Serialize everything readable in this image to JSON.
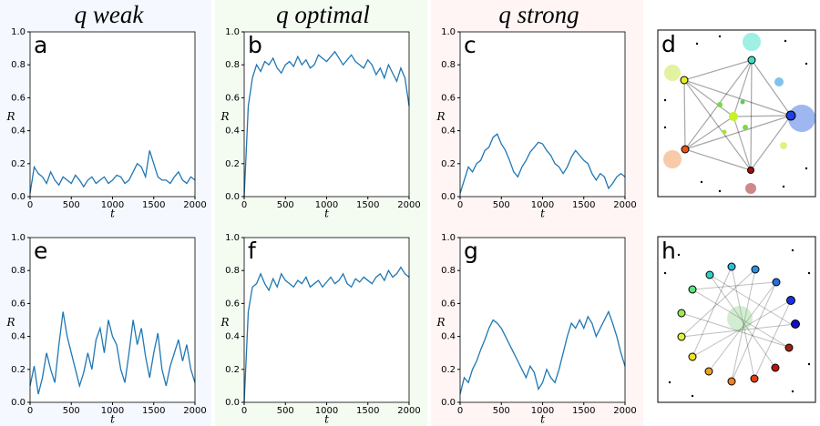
{
  "chart_data": [
    {
      "type": "line",
      "title": "q weak",
      "panel_label": "a",
      "xlabel": "t",
      "ylabel": "R",
      "color": "#1f77b4",
      "xlim": [
        0,
        2000
      ],
      "ylim": [
        0,
        1
      ],
      "xticks": [
        0,
        500,
        1000,
        1500,
        2000
      ],
      "yticks": [
        {
          "value": 0,
          "label": "0.0"
        },
        {
          "value": 0.2,
          "label": "0.2"
        },
        {
          "value": 0.4,
          "label": "0.4"
        },
        {
          "value": 0.6,
          "label": "0.6"
        },
        {
          "value": 0.8,
          "label": "0.8"
        },
        {
          "value": 1,
          "label": "1.0"
        }
      ],
      "x": [
        0,
        50,
        100,
        150,
        200,
        250,
        300,
        350,
        400,
        450,
        500,
        550,
        600,
        650,
        700,
        750,
        800,
        850,
        900,
        950,
        1000,
        1050,
        1100,
        1150,
        1200,
        1250,
        1300,
        1350,
        1400,
        1450,
        1500,
        1550,
        1600,
        1650,
        1700,
        1750,
        1800,
        1850,
        1900,
        1950,
        2000
      ],
      "values": [
        0.02,
        0.18,
        0.14,
        0.12,
        0.08,
        0.15,
        0.1,
        0.07,
        0.12,
        0.1,
        0.08,
        0.13,
        0.1,
        0.06,
        0.1,
        0.12,
        0.08,
        0.1,
        0.12,
        0.08,
        0.1,
        0.13,
        0.12,
        0.08,
        0.1,
        0.15,
        0.2,
        0.18,
        0.12,
        0.28,
        0.2,
        0.12,
        0.1,
        0.1,
        0.08,
        0.12,
        0.15,
        0.1,
        0.08,
        0.12,
        0.1
      ]
    },
    {
      "type": "line",
      "title": "q optimal",
      "panel_label": "b",
      "xlabel": "t",
      "ylabel": "R",
      "color": "#1f77b4",
      "xlim": [
        0,
        2000
      ],
      "ylim": [
        0,
        1
      ],
      "xticks": [
        0,
        500,
        1000,
        1500,
        2000
      ],
      "yticks": [
        {
          "value": 0,
          "label": "0.0"
        },
        {
          "value": 0.2,
          "label": "0.2"
        },
        {
          "value": 0.4,
          "label": "0.4"
        },
        {
          "value": 0.6,
          "label": "0.6"
        },
        {
          "value": 0.8,
          "label": "0.8"
        },
        {
          "value": 1,
          "label": "1.0"
        }
      ],
      "x": [
        0,
        50,
        100,
        150,
        200,
        250,
        300,
        350,
        400,
        450,
        500,
        550,
        600,
        650,
        700,
        750,
        800,
        850,
        900,
        950,
        1000,
        1050,
        1100,
        1150,
        1200,
        1250,
        1300,
        1350,
        1400,
        1450,
        1500,
        1550,
        1600,
        1650,
        1700,
        1750,
        1800,
        1850,
        1900,
        1950,
        2000
      ],
      "values": [
        0,
        0.55,
        0.72,
        0.8,
        0.76,
        0.82,
        0.8,
        0.84,
        0.78,
        0.75,
        0.8,
        0.82,
        0.79,
        0.85,
        0.8,
        0.83,
        0.78,
        0.8,
        0.86,
        0.84,
        0.82,
        0.85,
        0.88,
        0.84,
        0.8,
        0.83,
        0.86,
        0.82,
        0.8,
        0.78,
        0.83,
        0.8,
        0.74,
        0.78,
        0.72,
        0.8,
        0.75,
        0.7,
        0.78,
        0.72,
        0.55
      ]
    },
    {
      "type": "line",
      "title": "q strong",
      "panel_label": "c",
      "xlabel": "t",
      "ylabel": "R",
      "color": "#1f77b4",
      "xlim": [
        0,
        2000
      ],
      "ylim": [
        0,
        1
      ],
      "xticks": [
        0,
        500,
        1000,
        1500,
        2000
      ],
      "yticks": [
        {
          "value": 0,
          "label": "0.0"
        },
        {
          "value": 0.2,
          "label": "0.2"
        },
        {
          "value": 0.4,
          "label": "0.4"
        },
        {
          "value": 0.6,
          "label": "0.6"
        },
        {
          "value": 0.8,
          "label": "0.8"
        },
        {
          "value": 1,
          "label": "1.0"
        }
      ],
      "x": [
        0,
        50,
        100,
        150,
        200,
        250,
        300,
        350,
        400,
        450,
        500,
        550,
        600,
        650,
        700,
        750,
        800,
        850,
        900,
        950,
        1000,
        1050,
        1100,
        1150,
        1200,
        1250,
        1300,
        1350,
        1400,
        1450,
        1500,
        1550,
        1600,
        1650,
        1700,
        1750,
        1800,
        1850,
        1900,
        1950,
        2000
      ],
      "values": [
        0.02,
        0.1,
        0.18,
        0.15,
        0.2,
        0.22,
        0.28,
        0.3,
        0.36,
        0.38,
        0.32,
        0.28,
        0.22,
        0.15,
        0.12,
        0.18,
        0.22,
        0.27,
        0.3,
        0.33,
        0.32,
        0.28,
        0.25,
        0.2,
        0.18,
        0.14,
        0.18,
        0.24,
        0.28,
        0.25,
        0.22,
        0.2,
        0.14,
        0.1,
        0.14,
        0.12,
        0.05,
        0.08,
        0.12,
        0.14,
        0.12
      ]
    },
    {
      "type": "line",
      "panel_label": "e",
      "xlabel": "t",
      "ylabel": "R",
      "color": "#1f77b4",
      "xlim": [
        0,
        2000
      ],
      "ylim": [
        0,
        1
      ],
      "xticks": [
        0,
        500,
        1000,
        1500,
        2000
      ],
      "yticks": [
        {
          "value": 0,
          "label": "0.0"
        },
        {
          "value": 0.2,
          "label": "0.2"
        },
        {
          "value": 0.4,
          "label": "0.4"
        },
        {
          "value": 0.6,
          "label": "0.6"
        },
        {
          "value": 0.8,
          "label": "0.8"
        },
        {
          "value": 1,
          "label": "1.0"
        }
      ],
      "x": [
        0,
        50,
        100,
        150,
        200,
        250,
        300,
        350,
        400,
        450,
        500,
        550,
        600,
        650,
        700,
        750,
        800,
        850,
        900,
        950,
        1000,
        1050,
        1100,
        1150,
        1200,
        1250,
        1300,
        1350,
        1400,
        1450,
        1500,
        1550,
        1600,
        1650,
        1700,
        1750,
        1800,
        1850,
        1900,
        1950,
        2000
      ],
      "values": [
        0.1,
        0.22,
        0.05,
        0.15,
        0.3,
        0.2,
        0.12,
        0.35,
        0.55,
        0.4,
        0.3,
        0.2,
        0.1,
        0.18,
        0.3,
        0.2,
        0.38,
        0.45,
        0.3,
        0.5,
        0.4,
        0.35,
        0.2,
        0.12,
        0.3,
        0.5,
        0.35,
        0.45,
        0.28,
        0.15,
        0.3,
        0.42,
        0.2,
        0.1,
        0.22,
        0.3,
        0.38,
        0.25,
        0.35,
        0.2,
        0.12
      ]
    },
    {
      "type": "line",
      "panel_label": "f",
      "xlabel": "t",
      "ylabel": "R",
      "color": "#1f77b4",
      "xlim": [
        0,
        2000
      ],
      "ylim": [
        0,
        1
      ],
      "xticks": [
        0,
        500,
        1000,
        1500,
        2000
      ],
      "yticks": [
        {
          "value": 0,
          "label": "0.0"
        },
        {
          "value": 0.2,
          "label": "0.2"
        },
        {
          "value": 0.4,
          "label": "0.4"
        },
        {
          "value": 0.6,
          "label": "0.6"
        },
        {
          "value": 0.8,
          "label": "0.8"
        },
        {
          "value": 1,
          "label": "1.0"
        }
      ],
      "x": [
        0,
        50,
        100,
        150,
        200,
        250,
        300,
        350,
        400,
        450,
        500,
        550,
        600,
        650,
        700,
        750,
        800,
        850,
        900,
        950,
        1000,
        1050,
        1100,
        1150,
        1200,
        1250,
        1300,
        1350,
        1400,
        1450,
        1500,
        1550,
        1600,
        1650,
        1700,
        1750,
        1800,
        1850,
        1900,
        1950,
        2000
      ],
      "values": [
        0,
        0.55,
        0.7,
        0.72,
        0.78,
        0.72,
        0.68,
        0.75,
        0.7,
        0.78,
        0.74,
        0.72,
        0.7,
        0.74,
        0.72,
        0.76,
        0.7,
        0.72,
        0.74,
        0.7,
        0.73,
        0.76,
        0.72,
        0.74,
        0.78,
        0.72,
        0.7,
        0.75,
        0.73,
        0.76,
        0.74,
        0.72,
        0.76,
        0.78,
        0.74,
        0.8,
        0.76,
        0.78,
        0.82,
        0.78,
        0.76
      ]
    },
    {
      "type": "line",
      "panel_label": "g",
      "xlabel": "t",
      "ylabel": "R",
      "color": "#1f77b4",
      "xlim": [
        0,
        2000
      ],
      "ylim": [
        0,
        1
      ],
      "xticks": [
        0,
        500,
        1000,
        1500,
        2000
      ],
      "yticks": [
        {
          "value": 0,
          "label": "0.0"
        },
        {
          "value": 0.2,
          "label": "0.2"
        },
        {
          "value": 0.4,
          "label": "0.4"
        },
        {
          "value": 0.6,
          "label": "0.6"
        },
        {
          "value": 0.8,
          "label": "0.8"
        },
        {
          "value": 1,
          "label": "1.0"
        }
      ],
      "x": [
        0,
        50,
        100,
        150,
        200,
        250,
        300,
        350,
        400,
        450,
        500,
        550,
        600,
        650,
        700,
        750,
        800,
        850,
        900,
        950,
        1000,
        1050,
        1100,
        1150,
        1200,
        1250,
        1300,
        1350,
        1400,
        1450,
        1500,
        1550,
        1600,
        1650,
        1700,
        1750,
        1800,
        1850,
        1900,
        1950,
        2000
      ],
      "values": [
        0.05,
        0.15,
        0.12,
        0.2,
        0.25,
        0.32,
        0.38,
        0.45,
        0.5,
        0.48,
        0.45,
        0.4,
        0.35,
        0.3,
        0.25,
        0.2,
        0.15,
        0.22,
        0.18,
        0.08,
        0.12,
        0.2,
        0.15,
        0.12,
        0.2,
        0.3,
        0.4,
        0.48,
        0.45,
        0.5,
        0.45,
        0.52,
        0.48,
        0.4,
        0.45,
        0.5,
        0.55,
        0.48,
        0.4,
        0.3,
        0.22
      ]
    }
  ],
  "diagrams": [
    {
      "panel_label": "d"
    },
    {
      "panel_label": "h"
    }
  ]
}
